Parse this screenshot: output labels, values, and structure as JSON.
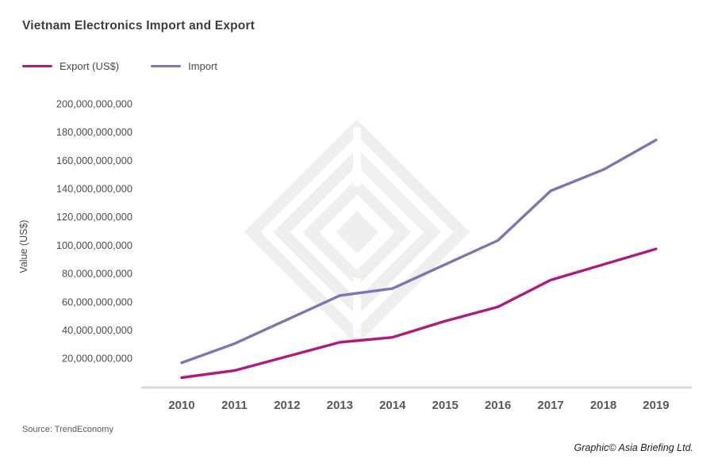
{
  "header": {
    "title": "Vietnam Electronics Import and Export"
  },
  "legend": [
    {
      "label": "Export (US$)",
      "color": "#b01a7f"
    },
    {
      "label": "Import",
      "color": "#7f75b2"
    }
  ],
  "footer": {
    "source": "Source: TrendEconomy",
    "credit": "Graphic© Asia Briefing Ltd."
  },
  "chart_data": {
    "type": "line",
    "title": "Vietnam Electronics Import and Export",
    "xlabel": "",
    "ylabel": "Value (US$)",
    "x": [
      2010,
      2011,
      2012,
      2013,
      2014,
      2015,
      2016,
      2017,
      2018,
      2019
    ],
    "series": [
      {
        "name": "Export (US$)",
        "color": "#b01a7f",
        "values": [
          7000000000,
          12000000000,
          22000000000,
          32000000000,
          35500000000,
          47000000000,
          57000000000,
          76000000000,
          87000000000,
          98000000000
        ]
      },
      {
        "name": "Import",
        "color": "#7f75b2",
        "values": [
          17500000000,
          31000000000,
          48000000000,
          65000000000,
          70000000000,
          87000000000,
          104000000000,
          139000000000,
          154000000000,
          175000000000
        ]
      }
    ],
    "ylim": [
      0,
      200000000000
    ],
    "ytick_step": 20000000000,
    "grid": false,
    "legend_position": "top-left"
  }
}
